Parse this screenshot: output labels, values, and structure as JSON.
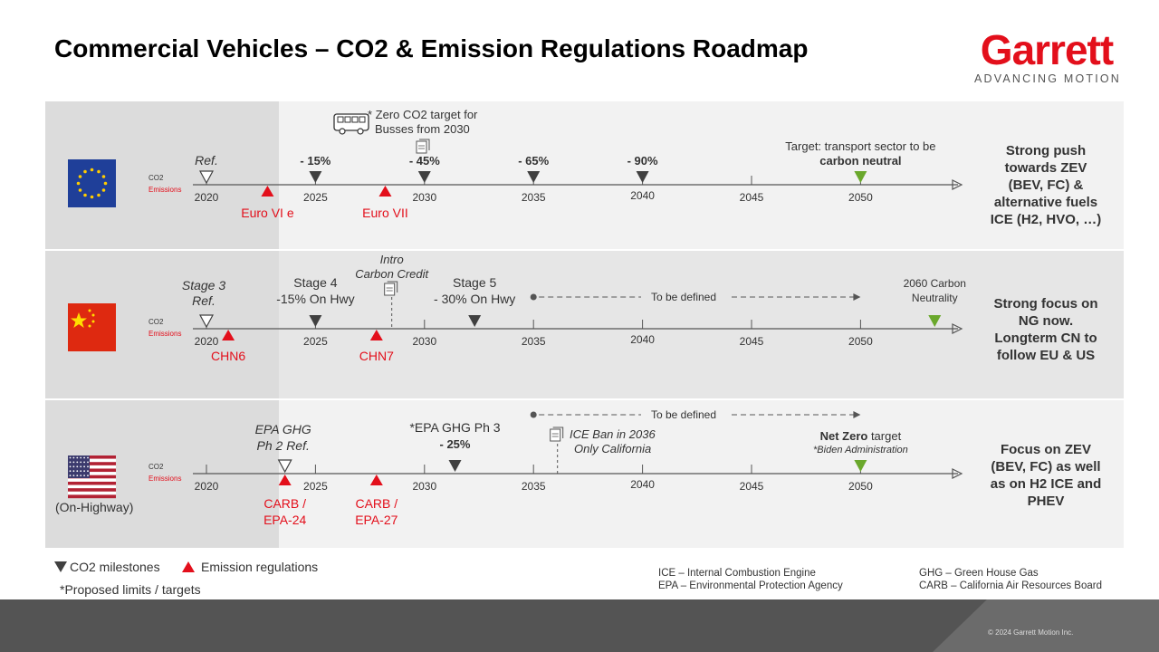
{
  "title": "Commercial Vehicles – CO2 & Emission Regulations Roadmap",
  "logo": {
    "word": "Garrett",
    "tagline": "ADVANCING MOTION"
  },
  "colors": {
    "milestone": "#404040",
    "emission": "#e30f1b",
    "target": "#6aa82c",
    "brand": "#e30f1b"
  },
  "axis": {
    "co2_label": "CO2",
    "emissions_label": "Emissions",
    "years": [
      "2020",
      "2025",
      "2030",
      "2035",
      "2040",
      "2045",
      "2050"
    ]
  },
  "rows": [
    {
      "region": "EU",
      "side_text": [
        "Strong push",
        "towards ZEV",
        "(BEV, FC) &",
        "alternative fuels",
        "ICE (H2, HVO, …)"
      ],
      "bus_note": [
        "* Zero CO2 target for",
        "Busses from 2030"
      ],
      "milestones": [
        {
          "year": 2020,
          "label": [
            "Ref."
          ],
          "style": "open"
        },
        {
          "year": 2025,
          "label": [
            "- 15%"
          ],
          "style": "filled"
        },
        {
          "year": 2030,
          "label": [
            "- 45%"
          ],
          "style": "filled"
        },
        {
          "year": 2035,
          "label": [
            "- 65%"
          ],
          "style": "filled"
        },
        {
          "year": 2040,
          "label": [
            "- 90%"
          ],
          "style": "filled"
        },
        {
          "year": 2050,
          "label": [
            "Target: transport sector to be",
            "carbon neutral"
          ],
          "style": "target"
        }
      ],
      "emissions": [
        {
          "year": 2022.8,
          "label": [
            "Euro VI e"
          ]
        },
        {
          "year": 2028.2,
          "label": [
            "Euro VII"
          ]
        }
      ]
    },
    {
      "region": "China",
      "side_text": [
        "Strong focus on",
        "NG now.",
        "Longterm CN to",
        "follow EU & US"
      ],
      "to_be_defined": "To be defined",
      "carbon_credit": [
        "Intro",
        "Carbon Credit"
      ],
      "milestones": [
        {
          "year": 2020,
          "label": [
            "Stage 3",
            "Ref."
          ],
          "style": "open"
        },
        {
          "year": 2025,
          "label": [
            "Stage 4",
            "-15% On Hwy"
          ],
          "style": "filled"
        },
        {
          "year": 2032.3,
          "label": [
            "Stage 5",
            "- 30% On Hwy"
          ],
          "style": "filled"
        },
        {
          "year": 2053.4,
          "label": [
            "2060 Carbon",
            "Neutrality"
          ],
          "style": "target"
        }
      ],
      "emissions": [
        {
          "year": 2021,
          "label": [
            "CHN6"
          ]
        },
        {
          "year": 2027.8,
          "label": [
            "CHN7"
          ]
        }
      ]
    },
    {
      "region": "US",
      "region_note": "(On-Highway)",
      "side_text": [
        "Focus on ZEV",
        "(BEV, FC) as well",
        "as on H2 ICE and",
        "PHEV"
      ],
      "to_be_defined": "To be defined",
      "ice_ban": [
        "ICE Ban in 2036",
        "Only California"
      ],
      "milestones": [
        {
          "year": 2023.6,
          "label": [
            "EPA GHG",
            "Ph 2 Ref."
          ],
          "style": "open"
        },
        {
          "year": 2031.4,
          "label": [
            "*EPA GHG Ph 3",
            "- 25%"
          ],
          "style": "filled"
        },
        {
          "year": 2050,
          "label": [
            "Net Zero target",
            "*Biden Administration"
          ],
          "style": "target"
        }
      ],
      "emissions": [
        {
          "year": 2023.6,
          "label": [
            "CARB /",
            "EPA-24"
          ]
        },
        {
          "year": 2027.8,
          "label": [
            "CARB /",
            "EPA-27"
          ]
        }
      ]
    }
  ],
  "legend": {
    "co2_milestones": "CO2 milestones",
    "emission_regulations": "Emission regulations",
    "proposed": "*Proposed limits / targets"
  },
  "abbreviations": [
    [
      "ICE – Internal Combustion Engine",
      "EPA – Environmental Protection Agency"
    ],
    [
      "GHG – Green House Gas",
      "CARB – California Air Resources Board"
    ]
  ],
  "copyright": "© 2024 Garrett Motion Inc."
}
